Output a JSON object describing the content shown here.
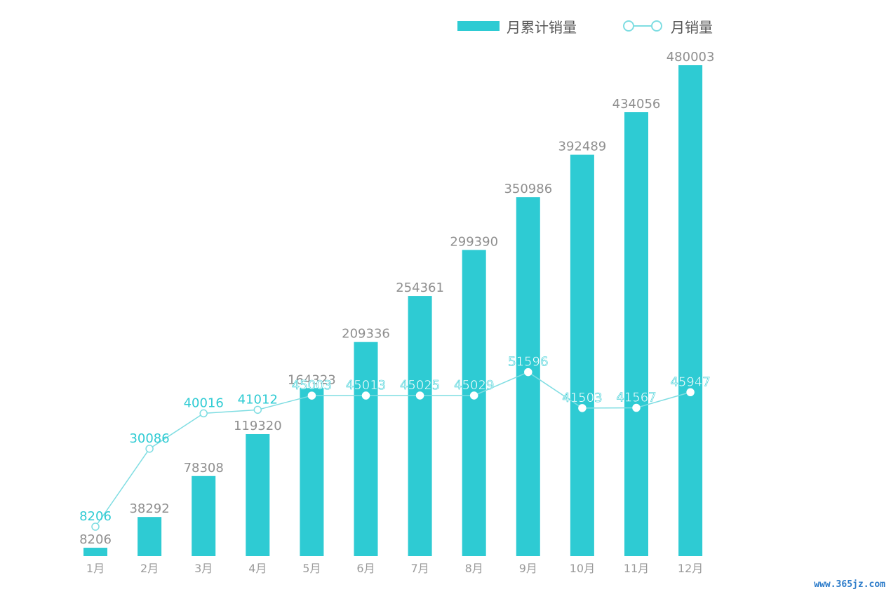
{
  "legend": {
    "cumulative_label": "月累计销量",
    "monthly_label": "月销量"
  },
  "colors": {
    "bar": "#2ecbd3",
    "line": "#7fdde2",
    "line_label": "#2ecbd3",
    "bar_label": "#8f8f8f",
    "axis_label": "#9a9a9a"
  },
  "watermark": "www.365jz.com",
  "chart_data": {
    "type": "bar",
    "categories": [
      "1月",
      "2月",
      "3月",
      "4月",
      "5月",
      "6月",
      "7月",
      "8月",
      "9月",
      "10月",
      "11月",
      "12月"
    ],
    "series": [
      {
        "name": "月累计销量",
        "type": "bar",
        "values": [
          8206,
          38292,
          78308,
          119320,
          164323,
          209336,
          254361,
          299390,
          350986,
          392489,
          434056,
          480003
        ]
      },
      {
        "name": "月销量",
        "type": "line",
        "values": [
          8206,
          30086,
          40016,
          41012,
          45003,
          45013,
          45025,
          45029,
          51596,
          41503,
          41567,
          45947
        ]
      }
    ],
    "legend_position": "top-right",
    "grid": false
  }
}
